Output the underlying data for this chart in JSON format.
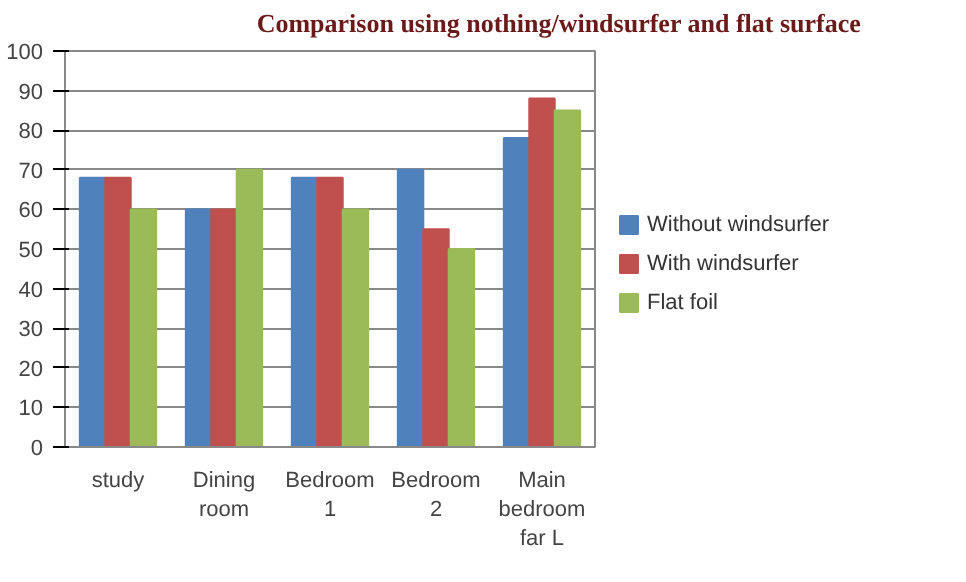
{
  "chart_data": {
    "type": "bar",
    "title": "Comparison using nothing/windsurfer and flat surface",
    "categories": [
      "study",
      "Dining room",
      "Bedroom 1",
      "Bedroom 2",
      "Main bedroom far L"
    ],
    "series": [
      {
        "name": "Without windsurfer",
        "color": "#4f81bd",
        "values": [
          68,
          60,
          68,
          70,
          78
        ]
      },
      {
        "name": "With windsurfer",
        "color": "#c0504d",
        "values": [
          68,
          60,
          68,
          55,
          88
        ]
      },
      {
        "name": "Flat foil",
        "color": "#9bbb59",
        "values": [
          60,
          70,
          60,
          50,
          85
        ]
      }
    ],
    "ylim": [
      0,
      100
    ],
    "yticks": [
      0,
      10,
      20,
      30,
      40,
      50,
      60,
      70,
      80,
      90,
      100
    ],
    "grid": "y",
    "legend": "right"
  }
}
